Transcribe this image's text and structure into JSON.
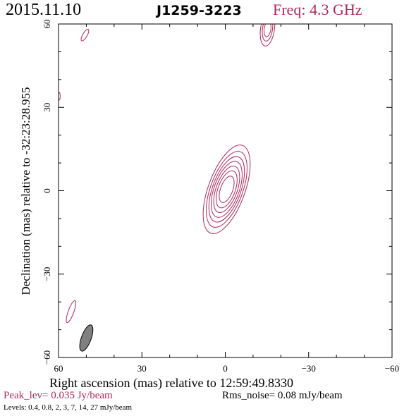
{
  "header": {
    "date": "2015.11.10",
    "source": "J1259-3223",
    "freq": "Freq: 4.3 GHz"
  },
  "footer": {
    "peak": "Peak_lev=  0.035 Jy/beam",
    "rms": "Rms_noise= 0.08 mJy/beam",
    "levels": "Levels: 0.4, 0.8,    2,    3,    7,   14,   27 mJy/beam"
  },
  "colors": {
    "contour": "#b0285a",
    "beam": "#808080",
    "frame": "#000000"
  },
  "chart_data": {
    "type": "contour",
    "xlabel": "Right ascension (mas) relative to 12:59:49.8330",
    "ylabel": "Declination (mas) relative to -32:23:28.955",
    "xlim": [
      60,
      -60
    ],
    "ylim": [
      -60,
      60
    ],
    "xticks": [
      60,
      30,
      0,
      -30,
      -60
    ],
    "yticks": [
      60,
      30,
      0,
      -30,
      -60
    ],
    "xtick_labels": [
      "60",
      "30",
      "0",
      "−30",
      "−60"
    ],
    "ytick_labels": [
      "60",
      "30",
      "0",
      "−30",
      "−60"
    ],
    "components": [
      {
        "name": "core",
        "center": [
          -0.5,
          0.5
        ],
        "pa_deg": 20,
        "levels_shown": 7,
        "axes": [
          [
            2.2,
            5.0
          ],
          [
            3.1,
            7.0
          ],
          [
            3.8,
            8.8
          ],
          [
            4.5,
            10.6
          ],
          [
            5.1,
            12.4
          ],
          [
            5.8,
            14.4
          ],
          [
            6.6,
            16.8
          ]
        ]
      },
      {
        "name": "north-east-feature",
        "center": [
          -15.2,
          58.2
        ],
        "pa_deg": 8,
        "levels_shown": 3,
        "axes": [
          [
            1.2,
            2.8
          ],
          [
            1.8,
            4.4
          ],
          [
            2.5,
            6.2
          ]
        ]
      },
      {
        "name": "north-west-spot",
        "center": [
          50.5,
          56.0
        ],
        "pa_deg": 30,
        "levels_shown": 1,
        "axes": [
          [
            0.8,
            2.4
          ]
        ]
      },
      {
        "name": "south-west-spot",
        "center": [
          55.5,
          -43.5
        ],
        "pa_deg": 20,
        "levels_shown": 1,
        "axes": [
          [
            1.0,
            4.2
          ]
        ]
      },
      {
        "name": "left-edge-spot",
        "center": [
          59.8,
          34.0
        ],
        "pa_deg": 0,
        "levels_shown": 1,
        "axes": [
          [
            0.4,
            1.4
          ]
        ]
      }
    ],
    "beam": {
      "center": [
        50.0,
        -53.0
      ],
      "major": 10.0,
      "minor": 3.5,
      "pa_deg": 20
    }
  }
}
